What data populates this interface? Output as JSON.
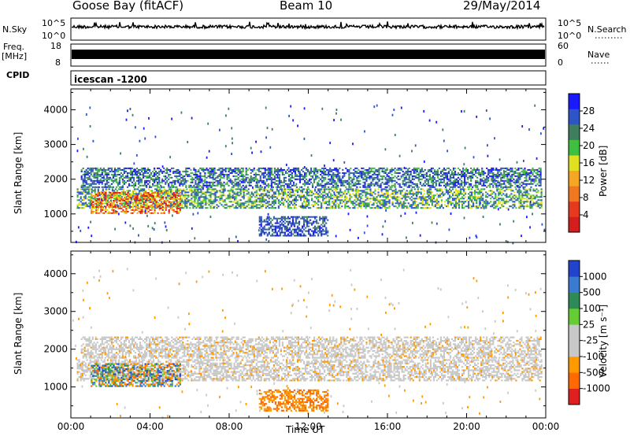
{
  "header": {
    "station": "Goose Bay (fitACF)",
    "beam": "Beam 10",
    "date": "29/May/2014"
  },
  "strips": {
    "nsky_label": "N.Sky",
    "nsky_ticks": [
      "10^5",
      "10^0"
    ],
    "nsky_right_ticks": [
      "10^5",
      "10^0"
    ],
    "nsearch_label": "N.Search",
    "freq_label": "Freq.",
    "freq_unit": "[MHz]",
    "freq_ticks": [
      "18",
      "8"
    ],
    "nave_ticks": [
      "60",
      "0"
    ],
    "nave_label": "Nave",
    "cpid_label": "CPID",
    "cpid_value": "icescan -1200"
  },
  "chart_data": [
    {
      "type": "heatmap",
      "panel": "power",
      "ylabel": "Slant Range [km]",
      "xlabel": "Time UT",
      "x_ticks": [
        "00:00",
        "04:00",
        "08:00",
        "12:00",
        "16:00",
        "20:00",
        "00:00"
      ],
      "xlim_hours": [
        0,
        24
      ],
      "y_ticks": [
        1000,
        2000,
        3000,
        4000
      ],
      "ylim_km": [
        180,
        4600
      ],
      "colorbar": {
        "label": "Power [dB]",
        "ticks": [
          "4",
          "8",
          "12",
          "16",
          "20",
          "24",
          "28"
        ],
        "colors": [
          "#1a1aff",
          "#2e55c6",
          "#3f7f5f",
          "#3fbf3f",
          "#e0e020",
          "#f5a623",
          "#f0781e",
          "#e53a1e",
          "#d41e1e"
        ]
      },
      "bands": [
        {
          "name": "main",
          "x": [
            0.3,
            23.8
          ],
          "y": [
            1150,
            1700
          ]
        },
        {
          "name": "upper",
          "x": [
            0.5,
            23.7
          ],
          "y": [
            1750,
            2300
          ]
        },
        {
          "name": "strong_early",
          "x": [
            1.0,
            5.5
          ],
          "y": [
            1000,
            1600
          ]
        },
        {
          "name": "descending_echo",
          "x": [
            9.5,
            13.0
          ],
          "y": [
            350,
            900
          ]
        }
      ]
    },
    {
      "type": "heatmap",
      "panel": "velocity",
      "ylabel": "Slant Range [km]",
      "xlabel": "Time UT",
      "x_ticks": [
        "00:00",
        "04:00",
        "08:00",
        "12:00",
        "16:00",
        "20:00",
        "00:00"
      ],
      "xlim_hours": [
        0,
        24
      ],
      "y_ticks": [
        1000,
        2000,
        3000,
        4000
      ],
      "ylim_km": [
        180,
        4600
      ],
      "colorbar": {
        "label": "Velocity [m s⁻¹]",
        "ticks": [
          "1000",
          "500",
          "100",
          "25",
          "-25",
          "-100",
          "-500",
          "-1000"
        ],
        "colors": [
          "#2244cc",
          "#3a7ad0",
          "#2e8b57",
          "#66cc33",
          "#c8c8c8",
          "#c8c8c8",
          "#ff9900",
          "#ff6a00",
          "#e02020"
        ]
      },
      "bands": [
        {
          "name": "main",
          "x": [
            0.3,
            23.8
          ],
          "y": [
            1150,
            1700
          ]
        },
        {
          "name": "upper",
          "x": [
            0.5,
            23.7
          ],
          "y": [
            1750,
            2300
          ]
        },
        {
          "name": "strong_early",
          "x": [
            1.0,
            5.5
          ],
          "y": [
            1000,
            1600
          ]
        },
        {
          "name": "descending_echo",
          "x": [
            9.5,
            13.0
          ],
          "y": [
            350,
            900
          ]
        }
      ]
    }
  ]
}
